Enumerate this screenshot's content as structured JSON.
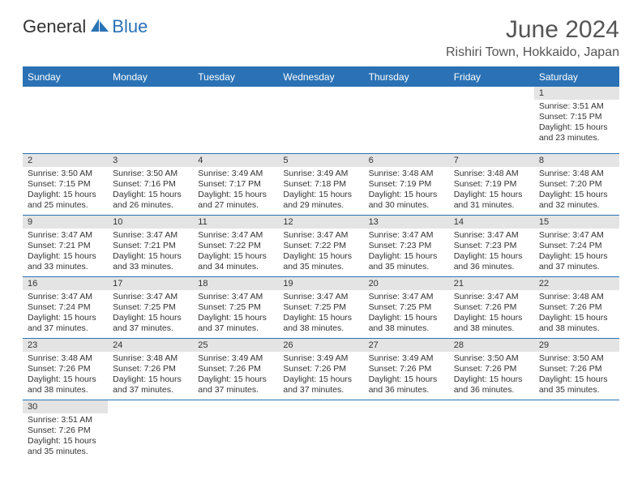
{
  "brand": {
    "part1": "General",
    "part2": "Blue"
  },
  "title": "June 2024",
  "location": "Rishiri Town, Hokkaido, Japan",
  "colors": {
    "accent": "#2a72b5",
    "header_bg": "#2a72b5",
    "header_text": "#ffffff",
    "daynum_bg": "#e4e4e4",
    "text": "#333333",
    "background": "#ffffff"
  },
  "dayHeaders": [
    "Sunday",
    "Monday",
    "Tuesday",
    "Wednesday",
    "Thursday",
    "Friday",
    "Saturday"
  ],
  "weeks": [
    [
      null,
      null,
      null,
      null,
      null,
      null,
      {
        "n": "1",
        "sr": "3:51 AM",
        "ss": "7:15 PM",
        "dl": "15 hours and 23 minutes."
      }
    ],
    [
      {
        "n": "2",
        "sr": "3:50 AM",
        "ss": "7:15 PM",
        "dl": "15 hours and 25 minutes."
      },
      {
        "n": "3",
        "sr": "3:50 AM",
        "ss": "7:16 PM",
        "dl": "15 hours and 26 minutes."
      },
      {
        "n": "4",
        "sr": "3:49 AM",
        "ss": "7:17 PM",
        "dl": "15 hours and 27 minutes."
      },
      {
        "n": "5",
        "sr": "3:49 AM",
        "ss": "7:18 PM",
        "dl": "15 hours and 29 minutes."
      },
      {
        "n": "6",
        "sr": "3:48 AM",
        "ss": "7:19 PM",
        "dl": "15 hours and 30 minutes."
      },
      {
        "n": "7",
        "sr": "3:48 AM",
        "ss": "7:19 PM",
        "dl": "15 hours and 31 minutes."
      },
      {
        "n": "8",
        "sr": "3:48 AM",
        "ss": "7:20 PM",
        "dl": "15 hours and 32 minutes."
      }
    ],
    [
      {
        "n": "9",
        "sr": "3:47 AM",
        "ss": "7:21 PM",
        "dl": "15 hours and 33 minutes."
      },
      {
        "n": "10",
        "sr": "3:47 AM",
        "ss": "7:21 PM",
        "dl": "15 hours and 33 minutes."
      },
      {
        "n": "11",
        "sr": "3:47 AM",
        "ss": "7:22 PM",
        "dl": "15 hours and 34 minutes."
      },
      {
        "n": "12",
        "sr": "3:47 AM",
        "ss": "7:22 PM",
        "dl": "15 hours and 35 minutes."
      },
      {
        "n": "13",
        "sr": "3:47 AM",
        "ss": "7:23 PM",
        "dl": "15 hours and 35 minutes."
      },
      {
        "n": "14",
        "sr": "3:47 AM",
        "ss": "7:23 PM",
        "dl": "15 hours and 36 minutes."
      },
      {
        "n": "15",
        "sr": "3:47 AM",
        "ss": "7:24 PM",
        "dl": "15 hours and 37 minutes."
      }
    ],
    [
      {
        "n": "16",
        "sr": "3:47 AM",
        "ss": "7:24 PM",
        "dl": "15 hours and 37 minutes."
      },
      {
        "n": "17",
        "sr": "3:47 AM",
        "ss": "7:25 PM",
        "dl": "15 hours and 37 minutes."
      },
      {
        "n": "18",
        "sr": "3:47 AM",
        "ss": "7:25 PM",
        "dl": "15 hours and 37 minutes."
      },
      {
        "n": "19",
        "sr": "3:47 AM",
        "ss": "7:25 PM",
        "dl": "15 hours and 38 minutes."
      },
      {
        "n": "20",
        "sr": "3:47 AM",
        "ss": "7:25 PM",
        "dl": "15 hours and 38 minutes."
      },
      {
        "n": "21",
        "sr": "3:47 AM",
        "ss": "7:26 PM",
        "dl": "15 hours and 38 minutes."
      },
      {
        "n": "22",
        "sr": "3:48 AM",
        "ss": "7:26 PM",
        "dl": "15 hours and 38 minutes."
      }
    ],
    [
      {
        "n": "23",
        "sr": "3:48 AM",
        "ss": "7:26 PM",
        "dl": "15 hours and 38 minutes."
      },
      {
        "n": "24",
        "sr": "3:48 AM",
        "ss": "7:26 PM",
        "dl": "15 hours and 37 minutes."
      },
      {
        "n": "25",
        "sr": "3:49 AM",
        "ss": "7:26 PM",
        "dl": "15 hours and 37 minutes."
      },
      {
        "n": "26",
        "sr": "3:49 AM",
        "ss": "7:26 PM",
        "dl": "15 hours and 37 minutes."
      },
      {
        "n": "27",
        "sr": "3:49 AM",
        "ss": "7:26 PM",
        "dl": "15 hours and 36 minutes."
      },
      {
        "n": "28",
        "sr": "3:50 AM",
        "ss": "7:26 PM",
        "dl": "15 hours and 36 minutes."
      },
      {
        "n": "29",
        "sr": "3:50 AM",
        "ss": "7:26 PM",
        "dl": "15 hours and 35 minutes."
      }
    ],
    [
      {
        "n": "30",
        "sr": "3:51 AM",
        "ss": "7:26 PM",
        "dl": "15 hours and 35 minutes."
      },
      null,
      null,
      null,
      null,
      null,
      null
    ]
  ],
  "labels": {
    "sunrise": "Sunrise:",
    "sunset": "Sunset:",
    "daylight": "Daylight:"
  }
}
